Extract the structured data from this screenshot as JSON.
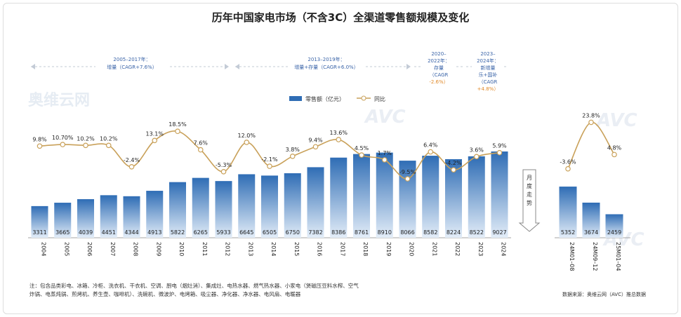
{
  "title": "历年中国家电市场（不含3C）全渠道零售额规模及变化",
  "legend": {
    "sales_label": "零售额（亿元）",
    "yoy_label": "同比"
  },
  "periods": [
    {
      "lines": [
        "2005–2017年：",
        "增量（CAGR+7.6%）"
      ]
    },
    {
      "lines": [
        "2013–2019年：",
        "增量+存量（CAGR+6.0%）"
      ]
    },
    {
      "lines": [
        "2020–",
        "2022年：",
        "存量",
        "（CAGR",
        "-2.6%）"
      ]
    },
    {
      "lines": [
        "2023–",
        "2024年：",
        "新增量",
        "乐+国补",
        "（CAGR",
        "+4.8%）"
      ]
    }
  ],
  "monthly_trend_label": [
    "月",
    "度",
    "走",
    "势"
  ],
  "watermarks": [
    "奥维云网",
    "AVC"
  ],
  "note_lines": [
    "注：包含品类彩电、冰箱、冷柜、洗衣机、干衣机、空调、厨电（烟灶消）、集成灶、电热水器、燃气热水器、小家电（煲磁压豆料水榨、空气",
    "炸锅、电蒸炖锅、煎烤机、养生壶、咖啡机）、洗碗机、微波炉、电烤箱、吸尘器、净化器、净水器、电风扇、电暖器"
  ],
  "source": "数据来源：奥维云网（AVC）推总数据",
  "colors": {
    "bar": "#2f6db5",
    "line": "#c9a15a",
    "title": "#222222",
    "period_text": "#3a64a8"
  },
  "chart_data": [
    {
      "type": "bar+line",
      "categories": [
        "2004",
        "2005",
        "2006",
        "2007",
        "2008",
        "2009",
        "2010",
        "2011",
        "2012",
        "2013",
        "2014",
        "2015",
        "2016",
        "2017",
        "2018",
        "2019",
        "2020",
        "2021",
        "2022",
        "2023",
        "2024"
      ],
      "series": [
        {
          "name": "零售额（亿元）",
          "type": "bar",
          "values": [
            3311,
            3665,
            4039,
            4451,
            4344,
            4913,
            5822,
            6265,
            5933,
            6645,
            6505,
            6750,
            7382,
            8386,
            8761,
            8910,
            8066,
            8582,
            8224,
            8522,
            9027
          ]
        },
        {
          "name": "同比",
          "type": "line",
          "values": [
            9.8,
            10.7,
            10.2,
            10.2,
            -2.4,
            13.1,
            18.5,
            7.6,
            -5.3,
            12.0,
            -2.1,
            3.8,
            9.4,
            13.6,
            4.5,
            1.7,
            -9.5,
            6.4,
            -4.2,
            3.6,
            5.9
          ],
          "labels": [
            "9.8%",
            "10.70%",
            "10.2%",
            "10.2%",
            "-2.4%",
            "13.1%",
            "18.5%",
            "7.6%",
            "-5.3%",
            "12.0%",
            "-2.1%",
            "3.8%",
            "9.4%",
            "13.6%",
            "4.5%",
            "1.7%",
            "-9.5%",
            "6.4%",
            "-4.2%",
            "3.6%",
            "5.9%"
          ]
        }
      ]
    },
    {
      "type": "bar+line",
      "categories": [
        "24M01–08",
        "24M09–12",
        "25M01–04"
      ],
      "series": [
        {
          "name": "零售额（亿元）",
          "type": "bar",
          "values": [
            5352,
            3674,
            2459
          ]
        },
        {
          "name": "同比",
          "type": "line",
          "values": [
            -3.6,
            23.8,
            4.8
          ],
          "labels": [
            "-3.6%",
            "23.8%",
            "4.8%"
          ]
        }
      ]
    }
  ]
}
